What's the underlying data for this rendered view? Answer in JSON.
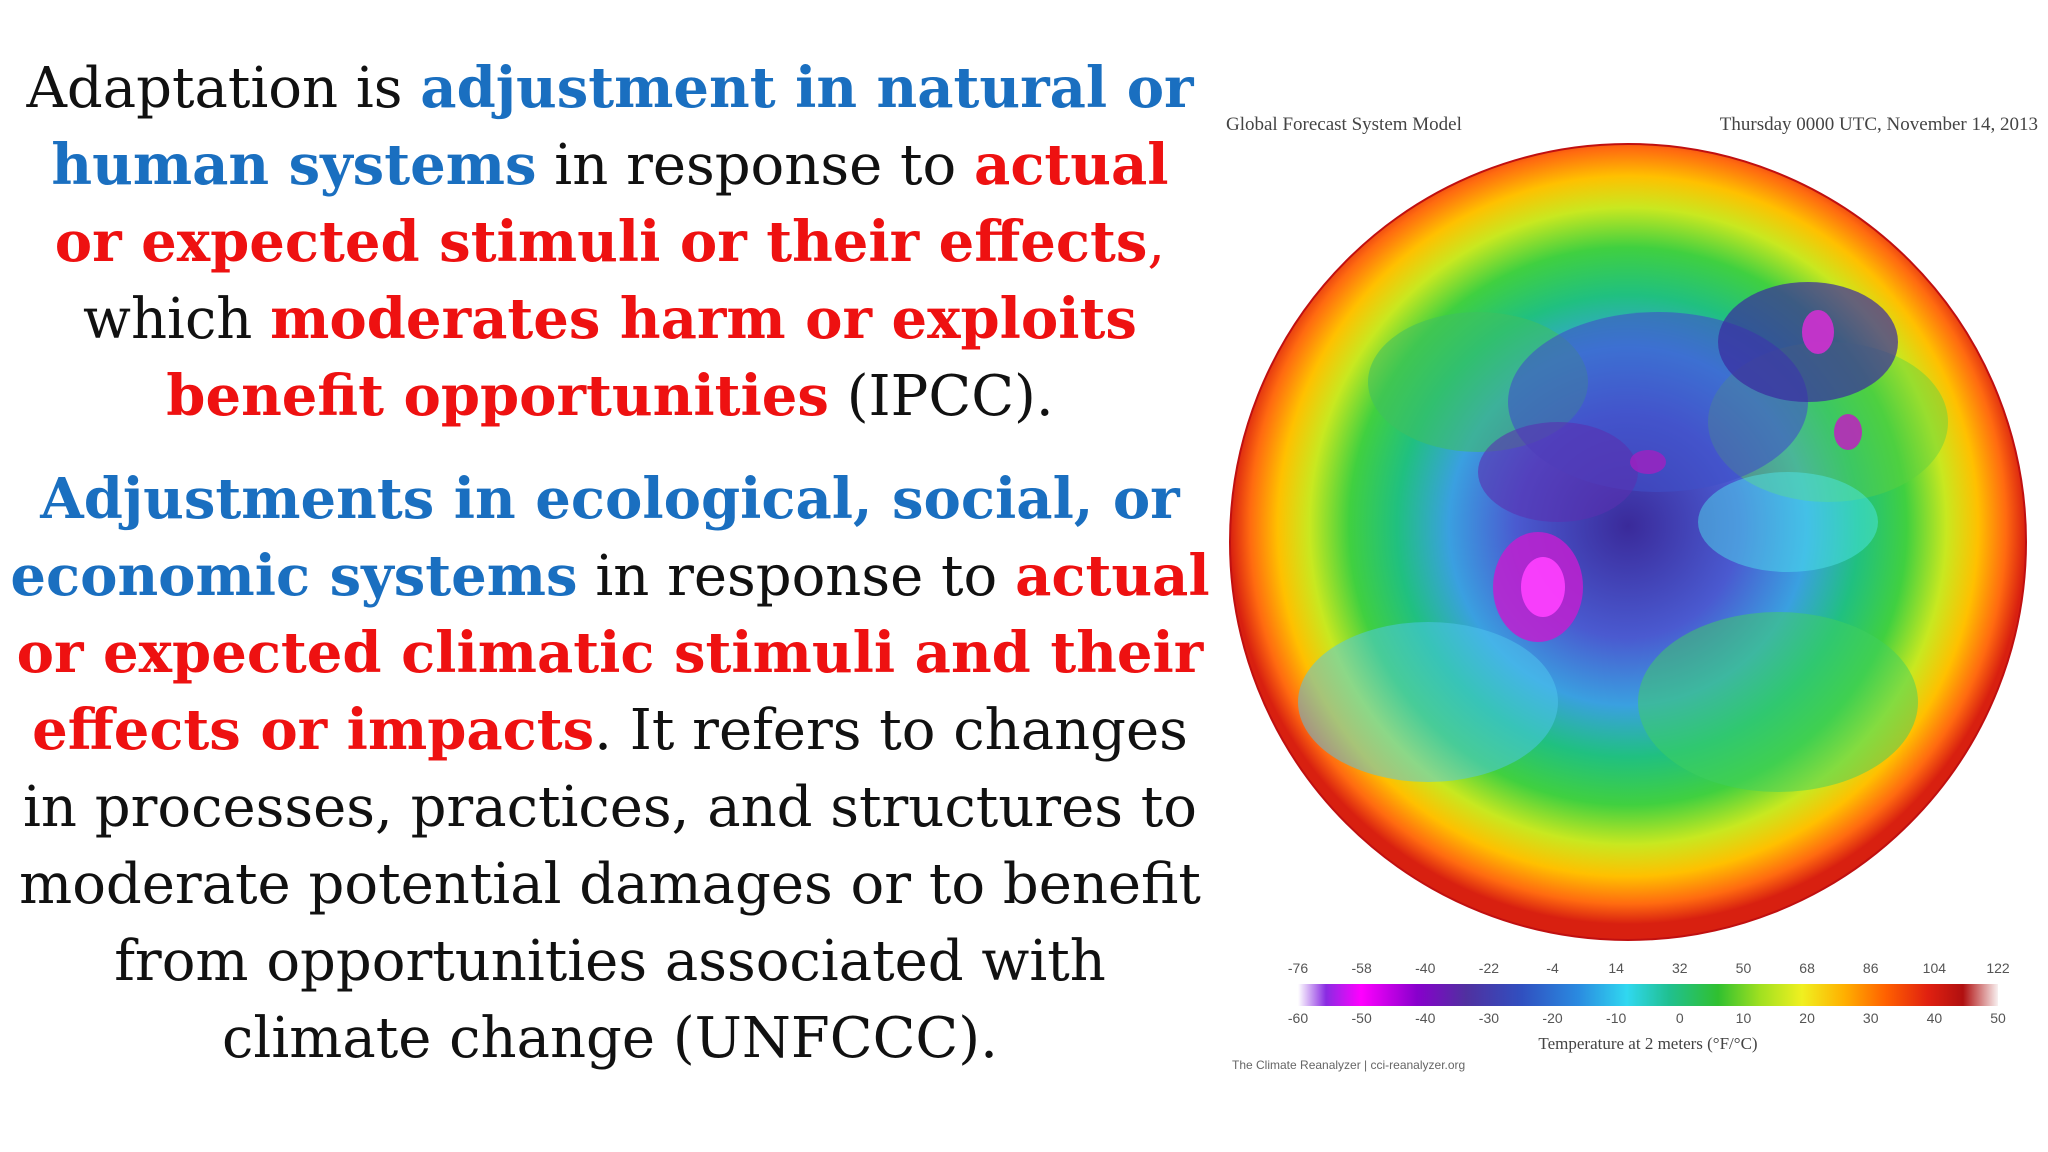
{
  "paragraph1": {
    "t1": "Adaptation is ",
    "t2": "adjustment in natural or human systems",
    "t3": " in response to ",
    "t4": "actual or expected stimuli or their effects",
    "t5": ",",
    "t6": " which ",
    "t7": "moderates harm or exploits benefit opportunities",
    "t8": " (IPCC)."
  },
  "paragraph2": {
    "t1": "Adjustments in ecological, social, or economic systems",
    "t2": " in response to ",
    "t3": "actual or expected climatic stimuli and their effects or impacts",
    "t4": ". It refers to changes in processes, practices, and structures to moderate potential damages or to benefit from opportunities associated with climate change (UNFCCC)."
  },
  "figure": {
    "header_left": "Global Forecast System Model",
    "header_right": "Thursday 0000 UTC, November 14, 2013",
    "scale_f": [
      "-76",
      "-58",
      "-40",
      "-22",
      "-4",
      "14",
      "32",
      "50",
      "68",
      "86",
      "104",
      "122"
    ],
    "scale_c": [
      "-60",
      "-50",
      "-40",
      "-30",
      "-20",
      "-10",
      "0",
      "10",
      "20",
      "30",
      "40",
      "50"
    ],
    "scale_caption": "Temperature at 2 meters (°F/°C)",
    "credit": "The Climate Reanalyzer | cci-reanalyzer.org"
  }
}
